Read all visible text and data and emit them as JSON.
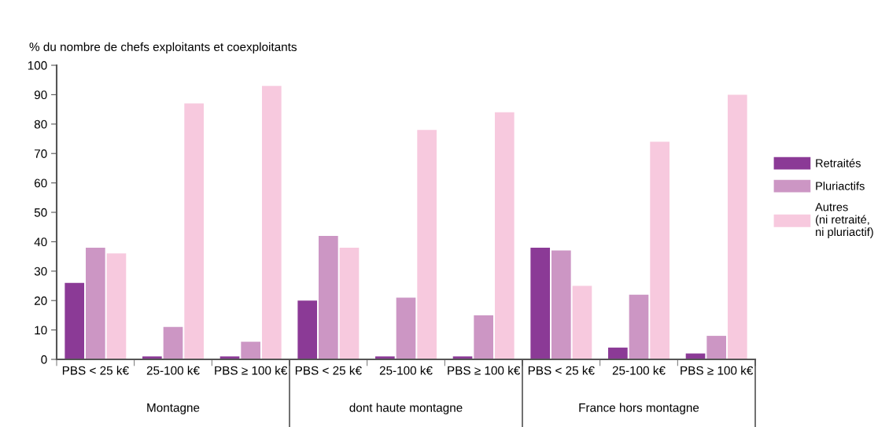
{
  "chart_data": {
    "type": "bar",
    "ylabel": "% du nombre de chefs exploitants et coexploitants",
    "categories": [
      "PBS < 25 k€",
      "25-100 k€",
      "PBS ≥ 100 k€",
      "PBS < 25 k€",
      "25-100 k€",
      "PBS ≥ 100 k€",
      "PBS < 25 k€",
      "25-100 k€",
      "PBS ≥ 100 k€"
    ],
    "series": [
      {
        "name": "Retraités",
        "color": "#8b3a96",
        "values": [
          26,
          1,
          1,
          20,
          1,
          1,
          38,
          4,
          2
        ]
      },
      {
        "name": "Pluriactifs",
        "color": "#cc96c4",
        "values": [
          38,
          11,
          6,
          42,
          21,
          15,
          37,
          22,
          8
        ]
      },
      {
        "name": "Autres\n(ni retraité,\nni pluriactif)",
        "color": "#f7c9de",
        "values": [
          36,
          87,
          93,
          38,
          78,
          84,
          25,
          74,
          90
        ]
      }
    ],
    "annotations": [
      "Montagne",
      "dont haute montagne",
      "France hors montagne"
    ],
    "ylim": [
      0,
      100
    ],
    "yticks": [
      0,
      10,
      20,
      30,
      40,
      50,
      60,
      70,
      80,
      90,
      100
    ],
    "grid": false,
    "legend": "right"
  }
}
